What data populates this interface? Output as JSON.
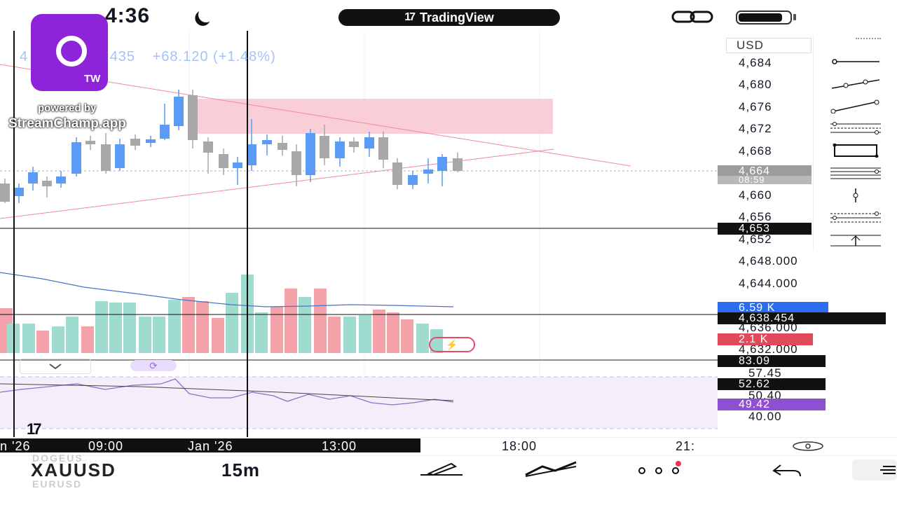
{
  "status_bar": {
    "time": "4:36",
    "app_title": "TradingView"
  },
  "overlay": {
    "badge_label": "TW",
    "powered_by": "powered by",
    "app_name": "StreamChamp.app"
  },
  "symbol_header": {
    "price_fragment": "4",
    "price_fragment_2": "435",
    "change": "+68.120 (+1.48%)"
  },
  "price_scale": {
    "currency": "USD",
    "ticks": [
      "4,684",
      "4,680",
      "4,676",
      "4,672",
      "4,668",
      "4,660",
      "4,656",
      "4,652",
      "4,648.000",
      "4,644.000",
      "4,636.000",
      "4,632.000",
      "57.45",
      "50.40",
      "40.00"
    ],
    "last_price_tag": "4,664",
    "countdown_tag": "08:59",
    "crosshair_tag": "4,653",
    "volume_up_tag": "6.59 K",
    "crosshair_price_tag": "4,638.454",
    "volume_down_tag": "2.1 K",
    "rsi_tag": "83.09",
    "rsi_ma_tag": "52.62",
    "rsi_value_tag": "49.42"
  },
  "time_axis": {
    "labels": [
      "n '26",
      "09:00",
      "Jan '26",
      "13:00",
      "18:00",
      "21:"
    ]
  },
  "bottom_bar": {
    "symbol": "XAUUSD",
    "symbol_prev": "DOGEUS",
    "symbol_next": "EURUSD",
    "interval": "15m"
  },
  "colors": {
    "up": "#5b9bf5",
    "down": "#a8a8a8",
    "vol_up": "#9fdccf",
    "vol_down": "#f4a3aa",
    "zone": "#f9c6cf",
    "rsi_band": "#f4eefb",
    "rsi_line": "#8e6fc9",
    "ma_line": "#4a73c9"
  }
}
